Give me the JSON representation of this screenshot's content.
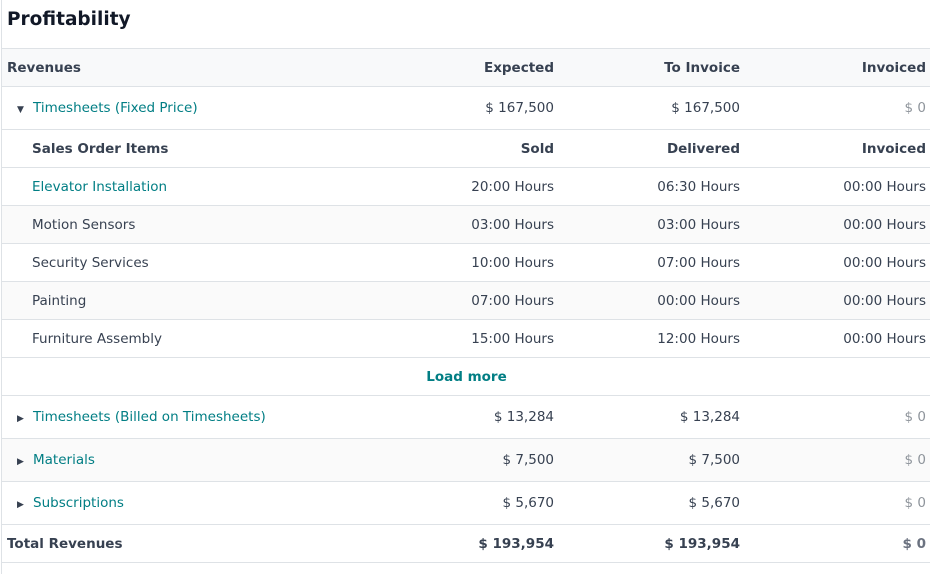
{
  "title": "Profitability",
  "header": {
    "label": "Revenues",
    "expected": "Expected",
    "to_invoice": "To Invoice",
    "invoiced": "Invoiced"
  },
  "fixed": {
    "label": "Timesheets (Fixed Price)",
    "expected": "$ 167,500",
    "to_invoice": "$ 167,500",
    "invoiced": "$ 0"
  },
  "sub_header": {
    "label": "Sales Order Items",
    "sold": "Sold",
    "delivered": "Delivered",
    "invoiced": "Invoiced"
  },
  "items": [
    {
      "name": "Elevator Installation",
      "sold": "20:00 Hours",
      "delivered": "06:30 Hours",
      "invoiced": "00:00 Hours",
      "link": true
    },
    {
      "name": "Motion Sensors",
      "sold": "03:00 Hours",
      "delivered": "03:00 Hours",
      "invoiced": "00:00 Hours"
    },
    {
      "name": "Security Services",
      "sold": "10:00 Hours",
      "delivered": "07:00 Hours",
      "invoiced": "00:00 Hours"
    },
    {
      "name": "Painting",
      "sold": "07:00 Hours",
      "delivered": "00:00 Hours",
      "invoiced": "00:00 Hours"
    },
    {
      "name": "Furniture Assembly",
      "sold": "15:00 Hours",
      "delivered": "12:00 Hours",
      "invoiced": "00:00 Hours"
    }
  ],
  "load_more": "Load more",
  "categories": [
    {
      "label": "Timesheets (Billed on Timesheets)",
      "expected": "$ 13,284",
      "to_invoice": "$ 13,284",
      "invoiced": "$ 0"
    },
    {
      "label": "Materials",
      "expected": "$ 7,500",
      "to_invoice": "$ 7,500",
      "invoiced": "$ 0"
    },
    {
      "label": "Subscriptions",
      "expected": "$ 5,670",
      "to_invoice": "$ 5,670",
      "invoiced": "$ 0"
    }
  ],
  "total": {
    "label": "Total Revenues",
    "expected": "$ 193,954",
    "to_invoice": "$ 193,954",
    "invoiced": "$ 0"
  },
  "colors": {
    "link": "#017e84",
    "muted": "#8f959c"
  }
}
